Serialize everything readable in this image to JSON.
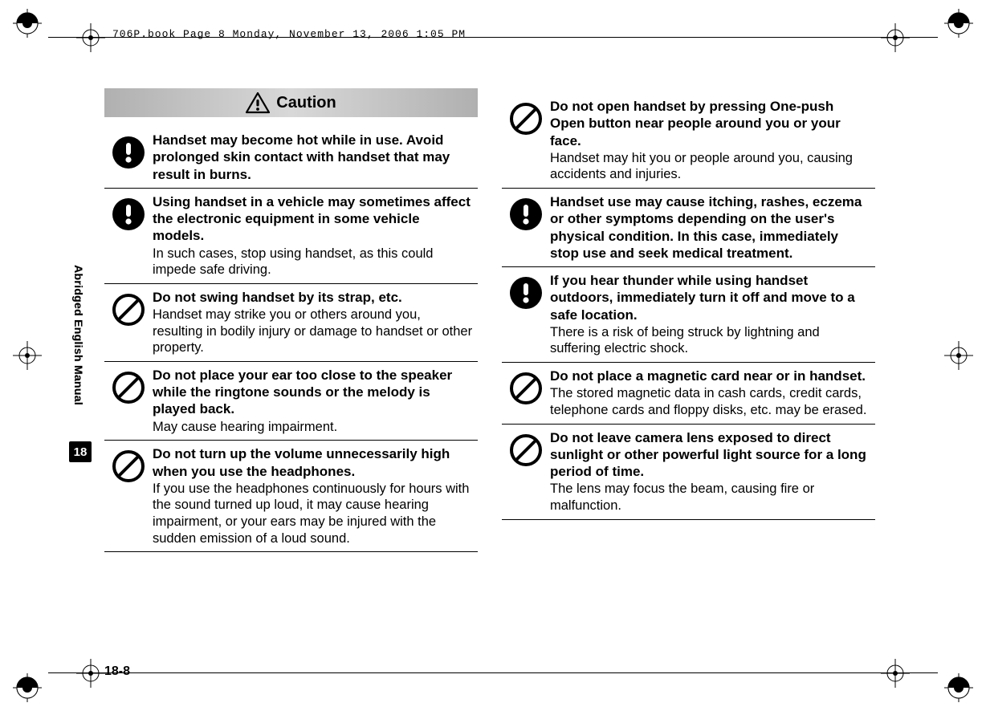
{
  "header_line": "706P.book  Page 8  Monday, November 13, 2006  1:05 PM",
  "caution_label": "Caution",
  "side_label": "Abridged English Manual",
  "chapter_number": "18",
  "page_number": "18-8",
  "colors": {
    "text": "#000000",
    "background": "#ffffff",
    "caution_gradient_start": "#b0b0b0",
    "caution_gradient_mid": "#d8d8d8",
    "icon_black": "#000000",
    "icon_white": "#ffffff"
  },
  "left_items": [
    {
      "icon": "mandatory",
      "bold": "Handset may become hot while in use. Avoid prolonged skin contact with handset that may result in burns.",
      "regular": ""
    },
    {
      "icon": "mandatory",
      "bold": "Using handset in a vehicle may sometimes affect the electronic equipment in some vehicle models.",
      "regular": "In such cases, stop using handset, as this could impede safe driving."
    },
    {
      "icon": "prohibit",
      "bold": "Do not swing handset by its strap, etc.",
      "regular": "Handset may strike you or others around you, resulting in bodily injury or damage to handset or other property."
    },
    {
      "icon": "prohibit",
      "bold": "Do not place your ear too close to the speaker while the ringtone sounds or the melody is played back.",
      "regular": "May cause hearing impairment."
    },
    {
      "icon": "prohibit",
      "bold": "Do not turn up the volume unnecessarily high when you use the headphones.",
      "regular": "If you use the headphones continuously for hours with the sound turned up loud, it may cause hearing impairment, or your ears may be injured with the sudden emission of a loud sound."
    }
  ],
  "right_items": [
    {
      "icon": "prohibit",
      "bold": "Do not open handset by pressing One-push Open button near people around you or your face.",
      "regular": "Handset may hit you or people around you, causing accidents and injuries."
    },
    {
      "icon": "mandatory",
      "bold": "Handset use may cause itching, rashes, eczema or other symptoms depending on the user's physical condition. In this case, immediately stop use and seek medical treatment.",
      "regular": ""
    },
    {
      "icon": "mandatory",
      "bold": "If you hear thunder while using handset outdoors, immediately turn it off and move to a safe location.",
      "regular": "There is a risk of being struck by lightning and suffering electric shock."
    },
    {
      "icon": "prohibit",
      "bold": "Do not place a magnetic card near or in handset.",
      "regular": "The stored magnetic data in cash cards, credit cards, telephone cards and floppy disks, etc. may be erased."
    },
    {
      "icon": "prohibit",
      "bold": "Do not leave camera lens exposed to direct sunlight or other powerful light source for a long period of time.",
      "regular": "The lens may focus the beam, causing fire or malfunction."
    }
  ]
}
